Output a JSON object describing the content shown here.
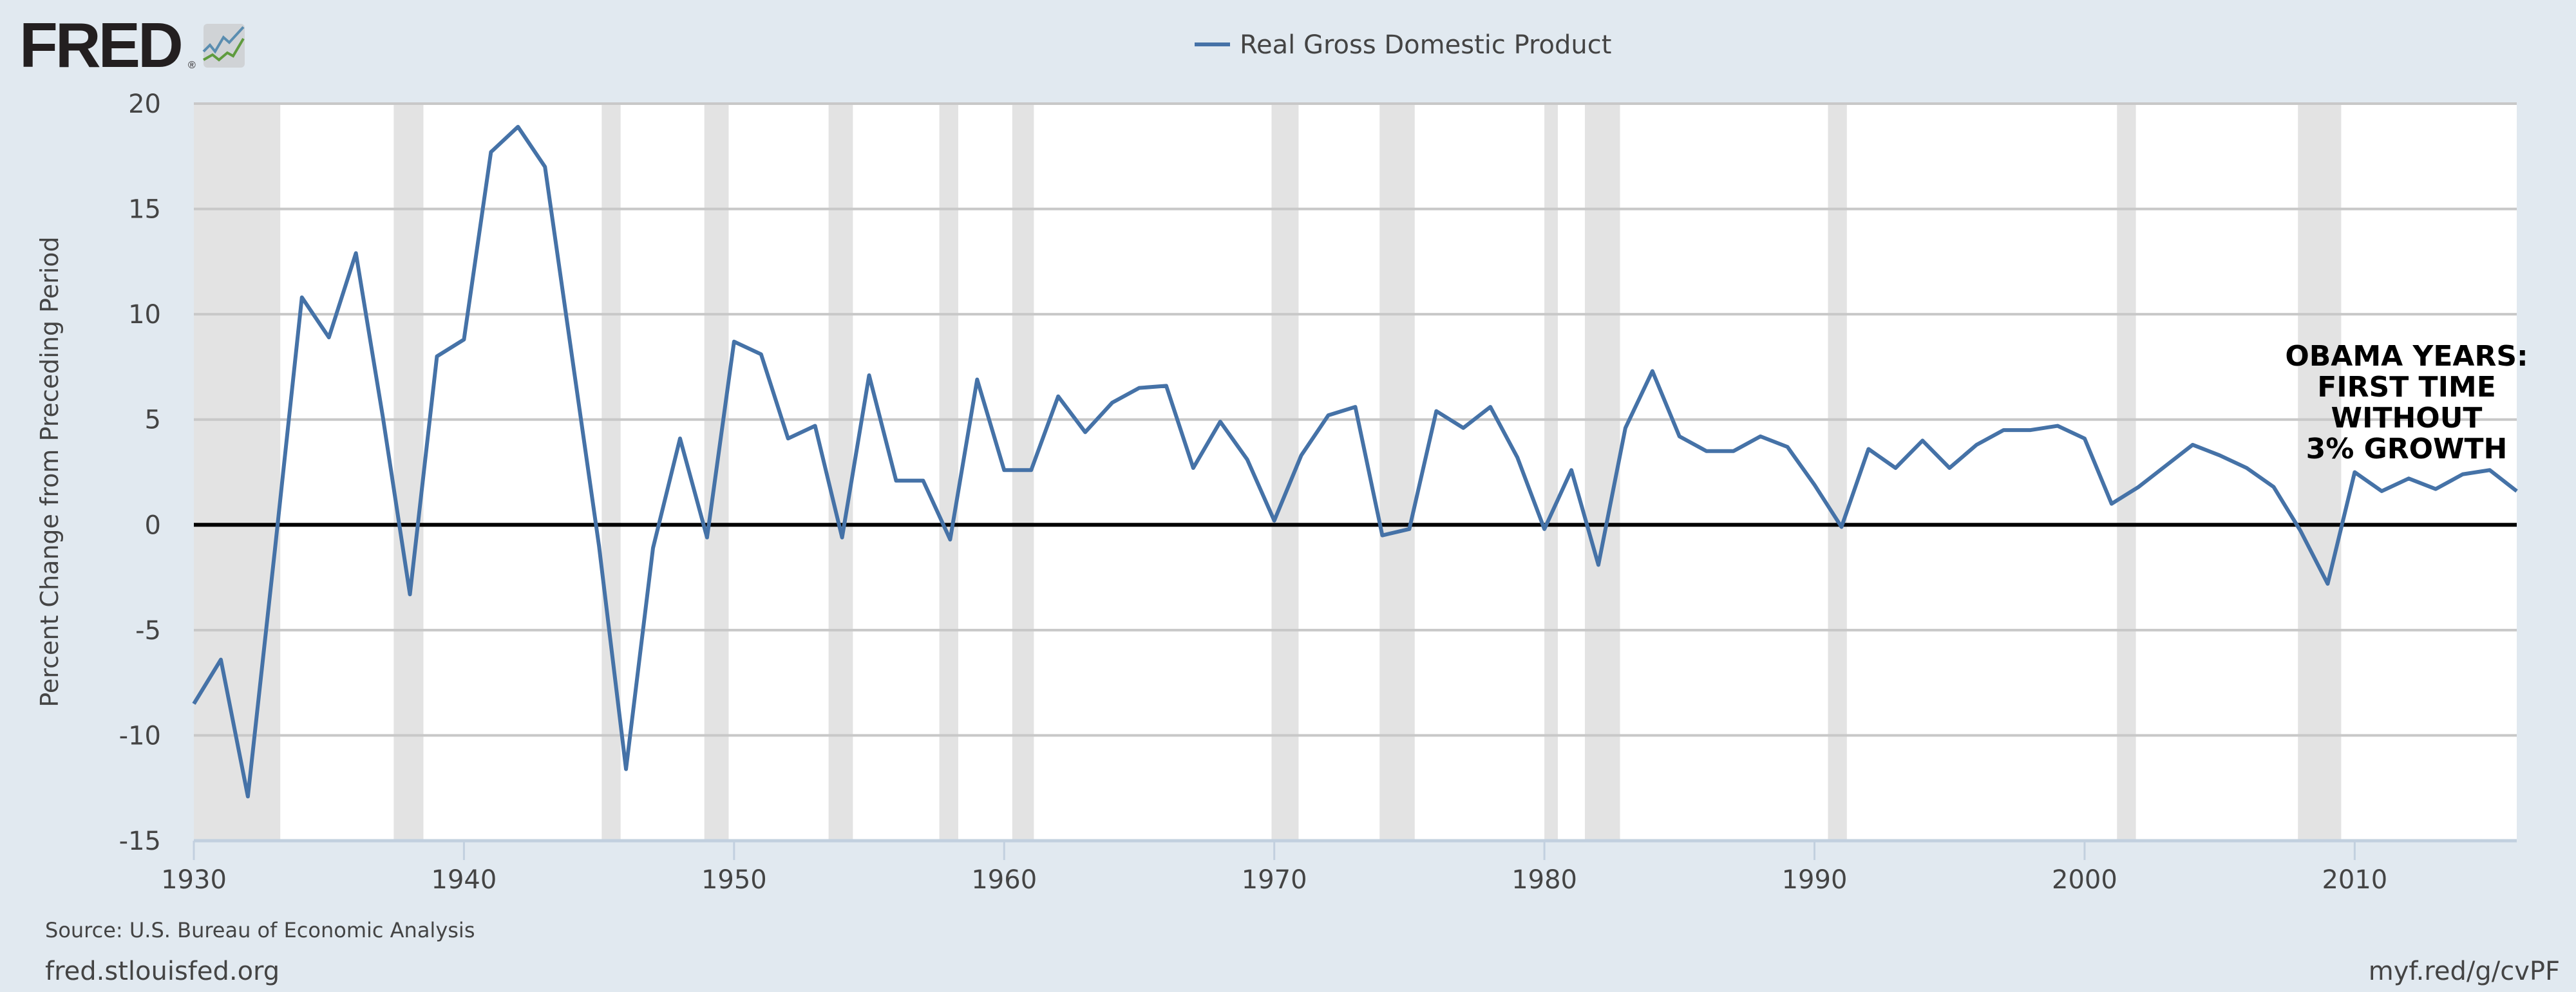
{
  "header": {
    "logo_text": "FRED",
    "logo_mark": "®"
  },
  "chart_data": {
    "type": "line",
    "title": "",
    "legend": [
      {
        "name": "Real Gross Domestic Product",
        "color": "#4572a7"
      }
    ],
    "legend_placement": "top-center",
    "xlabel": "",
    "ylabel": "Percent Change from Preceding Period",
    "xlim": [
      1930,
      2016
    ],
    "ylim": [
      -15,
      20
    ],
    "grid": true,
    "yticks": [
      20,
      15,
      10,
      5,
      0,
      -5,
      -10,
      -15
    ],
    "xticks": [
      1930,
      1940,
      1950,
      1960,
      1970,
      1980,
      1990,
      2000,
      2010
    ],
    "series": [
      {
        "name": "Real Gross Domestic Product",
        "color": "#4572a7",
        "x": [
          1930,
          1931,
          1932,
          1933,
          1934,
          1935,
          1936,
          1937,
          1938,
          1939,
          1940,
          1941,
          1942,
          1943,
          1944,
          1945,
          1946,
          1947,
          1948,
          1949,
          1950,
          1951,
          1952,
          1953,
          1954,
          1955,
          1956,
          1957,
          1958,
          1959,
          1960,
          1961,
          1962,
          1963,
          1964,
          1965,
          1966,
          1967,
          1968,
          1969,
          1970,
          1971,
          1972,
          1973,
          1974,
          1975,
          1976,
          1977,
          1978,
          1979,
          1980,
          1981,
          1982,
          1983,
          1984,
          1985,
          1986,
          1987,
          1988,
          1989,
          1990,
          1991,
          1992,
          1993,
          1994,
          1995,
          1996,
          1997,
          1998,
          1999,
          2000,
          2001,
          2002,
          2003,
          2004,
          2005,
          2006,
          2007,
          2008,
          2009,
          2010,
          2011,
          2012,
          2013,
          2014,
          2015,
          2016
        ],
        "values": [
          -8.5,
          -6.4,
          -12.9,
          -1.2,
          10.8,
          8.9,
          12.9,
          5.1,
          -3.3,
          8.0,
          8.8,
          17.7,
          18.9,
          17.0,
          8.0,
          -1.0,
          -11.6,
          -1.1,
          4.1,
          -0.6,
          8.7,
          8.1,
          4.1,
          4.7,
          -0.6,
          7.1,
          2.1,
          2.1,
          -0.7,
          6.9,
          2.6,
          2.6,
          6.1,
          4.4,
          5.8,
          6.5,
          6.6,
          2.7,
          4.9,
          3.1,
          0.2,
          3.3,
          5.2,
          5.6,
          -0.5,
          -0.2,
          5.4,
          4.6,
          5.6,
          3.2,
          -0.2,
          2.6,
          -1.9,
          4.6,
          7.3,
          4.2,
          3.5,
          3.5,
          4.2,
          3.7,
          1.9,
          -0.1,
          3.6,
          2.7,
          4.0,
          2.7,
          3.8,
          4.5,
          4.5,
          4.7,
          4.1,
          1.0,
          1.8,
          2.8,
          3.8,
          3.3,
          2.7,
          1.8,
          -0.3,
          -2.8,
          2.5,
          1.6,
          2.2,
          1.7,
          2.4,
          2.6,
          1.6
        ]
      }
    ],
    "recessions": [
      [
        1929.6,
        1933.2
      ],
      [
        1937.4,
        1938.5
      ],
      [
        1945.1,
        1945.8
      ],
      [
        1948.9,
        1949.8
      ],
      [
        1953.5,
        1954.4
      ],
      [
        1957.6,
        1958.3
      ],
      [
        1960.3,
        1961.1
      ],
      [
        1969.9,
        1970.9
      ],
      [
        1973.9,
        1975.2
      ],
      [
        1980.0,
        1980.5
      ],
      [
        1981.5,
        1982.8
      ],
      [
        1990.5,
        1991.2
      ],
      [
        2001.2,
        2001.9
      ],
      [
        2007.9,
        2009.5
      ]
    ],
    "annotation": [
      "OBAMA YEARS:",
      "FIRST TIME",
      "WITHOUT",
      "3% GROWTH"
    ]
  },
  "footer": {
    "source": "Source: U.S. Bureau of Economic Analysis",
    "site": "fred.stlouisfed.org",
    "short_link": "myf.red/g/cvPF"
  }
}
